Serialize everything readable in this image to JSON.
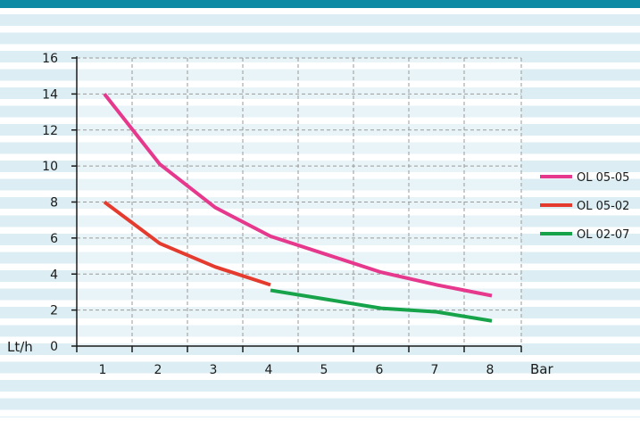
{
  "colors": {
    "top_bar": "#0E8AA5",
    "stripe": "#DCEEF3",
    "grid": "#9A9A9A",
    "axis": "#1A1A1A",
    "OL 05-05": "#E6388C",
    "OL 05-02": "#E53B2E",
    "OL 02-07": "#17A34A"
  },
  "chart_data": {
    "type": "line",
    "title": "",
    "xlabel": "Bar",
    "ylabel": "Lt/h",
    "x_ticks": [
      1,
      2,
      3,
      4,
      5,
      6,
      7,
      8
    ],
    "y_ticks": [
      0,
      2,
      4,
      6,
      8,
      10,
      12,
      14,
      16
    ],
    "xlim": [
      0.5,
      8.5
    ],
    "ylim": [
      0,
      16
    ],
    "grid": true,
    "legend_position": "right",
    "series": [
      {
        "name": "OL 05-05",
        "x": [
          1,
          2,
          3,
          4,
          5,
          6,
          7,
          8
        ],
        "y": [
          14,
          10.1,
          7.7,
          6.1,
          5.1,
          4.1,
          3.4,
          2.8
        ]
      },
      {
        "name": "OL 05-02",
        "x": [
          1,
          2,
          3,
          4
        ],
        "y": [
          8,
          5.7,
          4.4,
          3.4
        ]
      },
      {
        "name": "OL 02-07",
        "x": [
          4,
          5,
          6,
          7,
          8
        ],
        "y": [
          3.1,
          2.6,
          2.1,
          1.9,
          1.4
        ]
      }
    ]
  }
}
